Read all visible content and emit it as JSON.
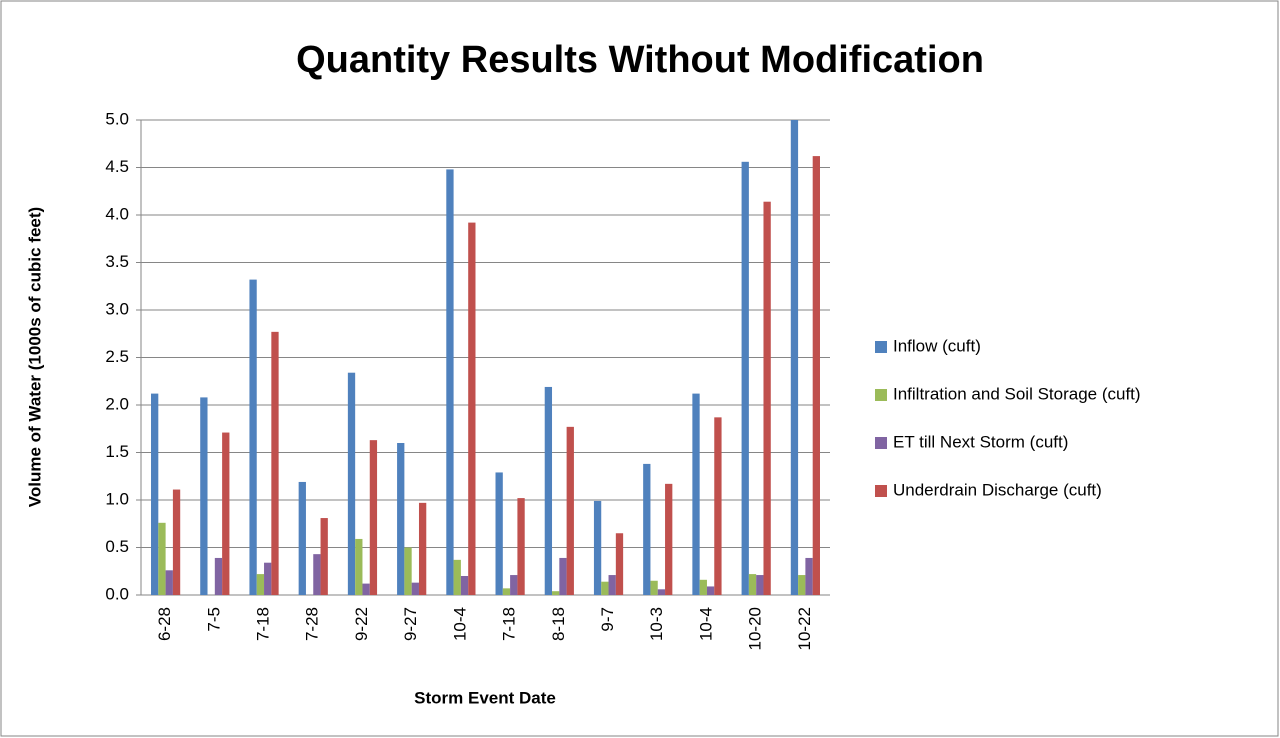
{
  "chart_data": {
    "type": "bar",
    "title": "Quantity Results Without Modification",
    "x_label": "Storm Event Date",
    "y_label": "Volume of Water (1000s of cubic feet)",
    "categories": [
      "6-28",
      "7-5",
      "7-18",
      "7-28",
      "9-22",
      "9-27",
      "10-4",
      "7-18",
      "8-18",
      "9-7",
      "10-3",
      "10-4",
      "10-20",
      "10-22"
    ],
    "series": [
      {
        "name": "Inflow (cuft)",
        "color": "#4f81bd",
        "values": [
          2.12,
          2.08,
          3.32,
          1.19,
          2.34,
          1.6,
          4.48,
          1.29,
          2.19,
          0.99,
          1.38,
          2.12,
          4.56,
          5.0
        ]
      },
      {
        "name": "Infiltration and Soil Storage (cuft)",
        "color": "#9bbb59",
        "values": [
          0.76,
          0,
          0.22,
          0,
          0.59,
          0.5,
          0.37,
          0.07,
          0.04,
          0.14,
          0.15,
          0.16,
          0.22,
          0.21
        ]
      },
      {
        "name": "ET till Next Storm (cuft)",
        "color": "#8064a2",
        "values": [
          0.26,
          0.39,
          0.34,
          0.43,
          0.12,
          0.13,
          0.2,
          0.21,
          0.39,
          0.21,
          0.06,
          0.09,
          0.21,
          0.39
        ]
      },
      {
        "name": "Underdrain Discharge (cuft)",
        "color": "#c0504d",
        "values": [
          1.11,
          1.71,
          2.77,
          0.81,
          1.63,
          0.97,
          3.92,
          1.02,
          1.77,
          0.65,
          1.17,
          1.87,
          4.14,
          4.62
        ]
      }
    ],
    "ylim": [
      0,
      5
    ],
    "yticks": [
      {
        "value": 0,
        "label": "0.0"
      },
      0.5,
      {
        "value": 1,
        "label": "1.0"
      },
      1.5,
      {
        "value": 2,
        "label": "2.0"
      },
      2.5,
      {
        "value": 3,
        "label": "3.0"
      },
      3.5,
      {
        "value": 4,
        "label": "4.0"
      },
      4.5,
      {
        "value": 5,
        "label": "5.0"
      }
    ],
    "grid": true,
    "legend": "right"
  }
}
